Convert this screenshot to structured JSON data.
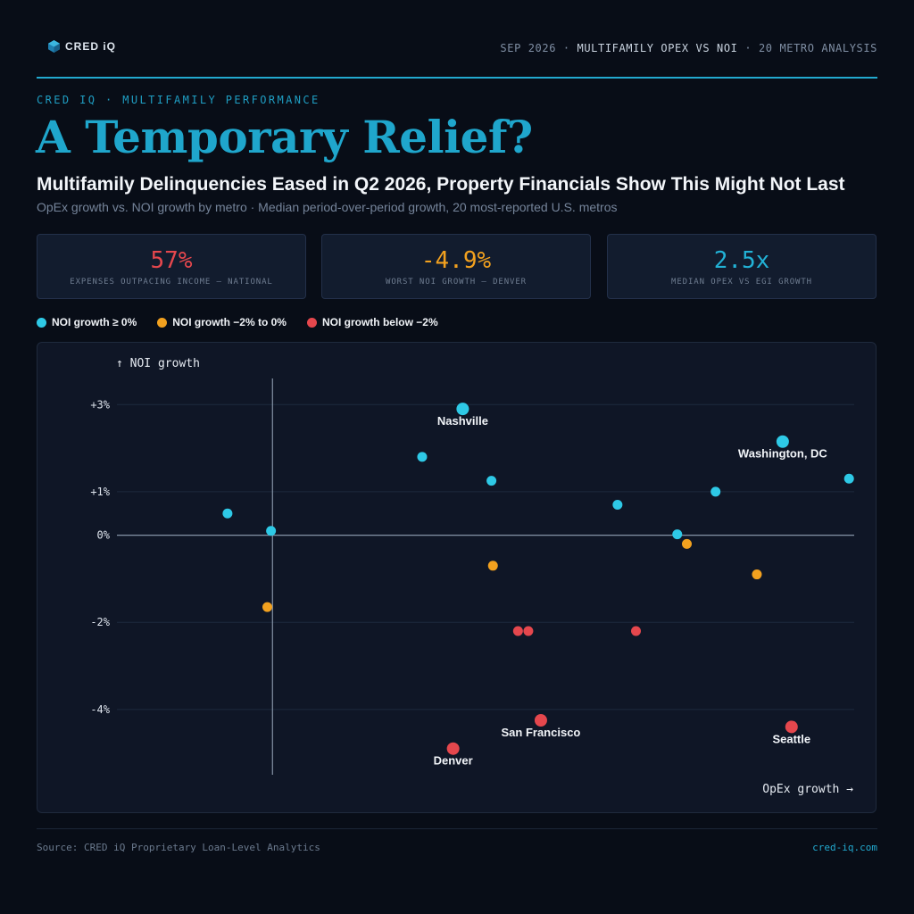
{
  "header": {
    "logo_text": "CRED iQ",
    "meta_left": "SEP 2026",
    "meta_separator": "·",
    "meta_middle": "MULTIFAMILY OPEX VS NOI",
    "meta_right": "20 METRO ANALYSIS"
  },
  "kicker": "CRED IQ · MULTIFAMILY PERFORMANCE",
  "title": "A Temporary Relief?",
  "subtitle": "Multifamily Delinquencies Eased in Q2 2026, Property Financials Show This Might Not Last",
  "description": "OpEx growth vs. NOI growth by metro · Median period-over-period growth, 20 most-reported U.S. metros",
  "kpis": [
    {
      "value": "57%",
      "label": "EXPENSES OUTPACING INCOME — NATIONAL",
      "color": "#e5474d"
    },
    {
      "value": "-4.9%",
      "label": "WORST NOI GROWTH — DENVER",
      "color": "#f2a11f"
    },
    {
      "value": "2.5x",
      "label": "MEDIAN OPEX VS EGI GROWTH",
      "color": "#22b2d6"
    }
  ],
  "legend": [
    {
      "label": "NOI growth ≥ 0%",
      "color": "#2ec9e6"
    },
    {
      "label": "NOI growth −2% to 0%",
      "color": "#f2a11f"
    },
    {
      "label": "NOI growth below −2%",
      "color": "#e5474d"
    }
  ],
  "chart_data": {
    "type": "scatter",
    "ylabel": "↑ NOI growth",
    "xlabel": "OpEx growth →",
    "ylim": [
      -5.5,
      3.6
    ],
    "xlim": [
      0,
      10
    ],
    "x_ticks_shown": false,
    "y_ticks": [
      {
        "value": 3,
        "label": "+3%"
      },
      {
        "value": 1,
        "label": "+1%"
      },
      {
        "value": 0,
        "label": "0%"
      },
      {
        "value": -2,
        "label": "-2%"
      },
      {
        "value": -4,
        "label": "-4%"
      }
    ],
    "reference_x": 2.11,
    "grid": "horizontal",
    "colors": {
      "positive": "#2ec9e6",
      "mild": "#f2a11f",
      "negative": "#e5474d"
    },
    "points": [
      {
        "x": 1.5,
        "y": 0.5,
        "category": "positive",
        "label": ""
      },
      {
        "x": 2.09,
        "y": 0.1,
        "category": "positive",
        "label": ""
      },
      {
        "x": 4.14,
        "y": 1.8,
        "category": "positive",
        "label": ""
      },
      {
        "x": 4.69,
        "y": 2.9,
        "category": "positive",
        "label": "Nashville"
      },
      {
        "x": 5.08,
        "y": 1.25,
        "category": "positive",
        "label": ""
      },
      {
        "x": 6.79,
        "y": 0.7,
        "category": "positive",
        "label": ""
      },
      {
        "x": 7.6,
        "y": 0.02,
        "category": "positive",
        "label": ""
      },
      {
        "x": 8.12,
        "y": 1.0,
        "category": "positive",
        "label": ""
      },
      {
        "x": 9.03,
        "y": 2.15,
        "category": "positive",
        "label": "Washington, DC"
      },
      {
        "x": 9.93,
        "y": 1.3,
        "category": "positive",
        "label": ""
      },
      {
        "x": 2.04,
        "y": -1.65,
        "category": "mild",
        "label": ""
      },
      {
        "x": 5.1,
        "y": -0.7,
        "category": "mild",
        "label": ""
      },
      {
        "x": 7.73,
        "y": -0.2,
        "category": "mild",
        "label": ""
      },
      {
        "x": 8.68,
        "y": -0.9,
        "category": "mild",
        "label": ""
      },
      {
        "x": 5.44,
        "y": -2.2,
        "category": "negative",
        "label": ""
      },
      {
        "x": 5.58,
        "y": -2.2,
        "category": "negative",
        "label": ""
      },
      {
        "x": 7.04,
        "y": -2.2,
        "category": "negative",
        "label": ""
      },
      {
        "x": 4.56,
        "y": -4.9,
        "category": "negative",
        "label": "Denver"
      },
      {
        "x": 5.75,
        "y": -4.25,
        "category": "negative",
        "label": "San Francisco"
      },
      {
        "x": 9.15,
        "y": -4.4,
        "category": "negative",
        "label": "Seattle"
      }
    ]
  },
  "footer": {
    "source": "Source: CRED iQ Proprietary Loan-Level Analytics",
    "site": "cred-iq.com"
  }
}
